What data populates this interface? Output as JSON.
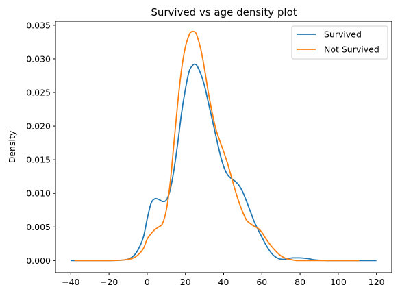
{
  "chart_data": {
    "type": "line",
    "title": "Survived vs age density plot",
    "xlabel": "",
    "ylabel": "Density",
    "xlim": [
      -48,
      128
    ],
    "ylim": [
      -0.0018,
      0.0356
    ],
    "x_ticks": [
      -40,
      -20,
      0,
      20,
      40,
      60,
      80,
      100,
      120
    ],
    "x_tick_labels": [
      "−40",
      "−20",
      "0",
      "20",
      "40",
      "60",
      "80",
      "100",
      "120"
    ],
    "y_ticks": [
      0.0,
      0.005,
      0.01,
      0.015,
      0.02,
      0.025,
      0.03,
      0.035
    ],
    "y_tick_labels": [
      "0.000",
      "0.005",
      "0.010",
      "0.015",
      "0.020",
      "0.025",
      "0.030",
      "0.035"
    ],
    "grid": false,
    "legend_position": "top-right",
    "series": [
      {
        "name": "Survived",
        "color": "#1f77b4",
        "x": [
          -40,
          -20,
          -12,
          -8,
          -5,
          -2,
          0,
          2,
          4,
          6,
          8,
          10,
          12,
          14,
          16,
          18,
          20,
          22,
          24,
          25,
          26,
          28,
          30,
          32,
          34,
          36,
          38,
          40,
          42,
          44,
          46,
          48,
          50,
          52,
          54,
          56,
          58,
          60,
          62,
          64,
          66,
          68,
          70,
          72,
          74,
          76,
          78,
          80,
          84,
          88,
          95,
          105,
          120
        ],
        "y": [
          0.0,
          0.0,
          0.0001,
          0.0005,
          0.0015,
          0.0035,
          0.0062,
          0.0085,
          0.0092,
          0.0091,
          0.0088,
          0.009,
          0.0105,
          0.0135,
          0.0175,
          0.022,
          0.0255,
          0.0282,
          0.0291,
          0.0292,
          0.029,
          0.0278,
          0.026,
          0.0235,
          0.021,
          0.0185,
          0.016,
          0.014,
          0.0128,
          0.0122,
          0.0118,
          0.0112,
          0.0102,
          0.0088,
          0.0073,
          0.0058,
          0.0046,
          0.0035,
          0.0024,
          0.0015,
          0.0008,
          0.0004,
          0.0002,
          0.0002,
          0.0003,
          0.0004,
          0.0004,
          0.0004,
          0.0003,
          0.0001,
          0.0,
          0.0,
          0.0
        ]
      },
      {
        "name": "Not Survived",
        "color": "#ff7f0e",
        "x": [
          -38,
          -20,
          -12,
          -8,
          -5,
          -2,
          0,
          2,
          4,
          6,
          8,
          10,
          12,
          14,
          16,
          18,
          20,
          22,
          23,
          24,
          25,
          26,
          28,
          30,
          32,
          34,
          36,
          38,
          40,
          42,
          44,
          46,
          48,
          50,
          52,
          54,
          56,
          58,
          60,
          62,
          64,
          66,
          68,
          70,
          72,
          74,
          76,
          78,
          80,
          85,
          90,
          100,
          111
        ],
        "y": [
          0.0,
          0.0,
          0.0001,
          0.0003,
          0.0008,
          0.0018,
          0.0032,
          0.004,
          0.0046,
          0.005,
          0.0055,
          0.0075,
          0.0115,
          0.0175,
          0.0235,
          0.0285,
          0.0318,
          0.0336,
          0.034,
          0.0341,
          0.034,
          0.0335,
          0.0315,
          0.0285,
          0.025,
          0.022,
          0.0195,
          0.0178,
          0.0162,
          0.0145,
          0.0125,
          0.0105,
          0.0087,
          0.0072,
          0.006,
          0.0055,
          0.0051,
          0.0048,
          0.0042,
          0.0033,
          0.0025,
          0.0018,
          0.0012,
          0.0007,
          0.0004,
          0.0002,
          0.0001,
          0.0,
          0.0,
          0.0,
          0.0,
          0.0,
          0.0
        ]
      }
    ]
  }
}
